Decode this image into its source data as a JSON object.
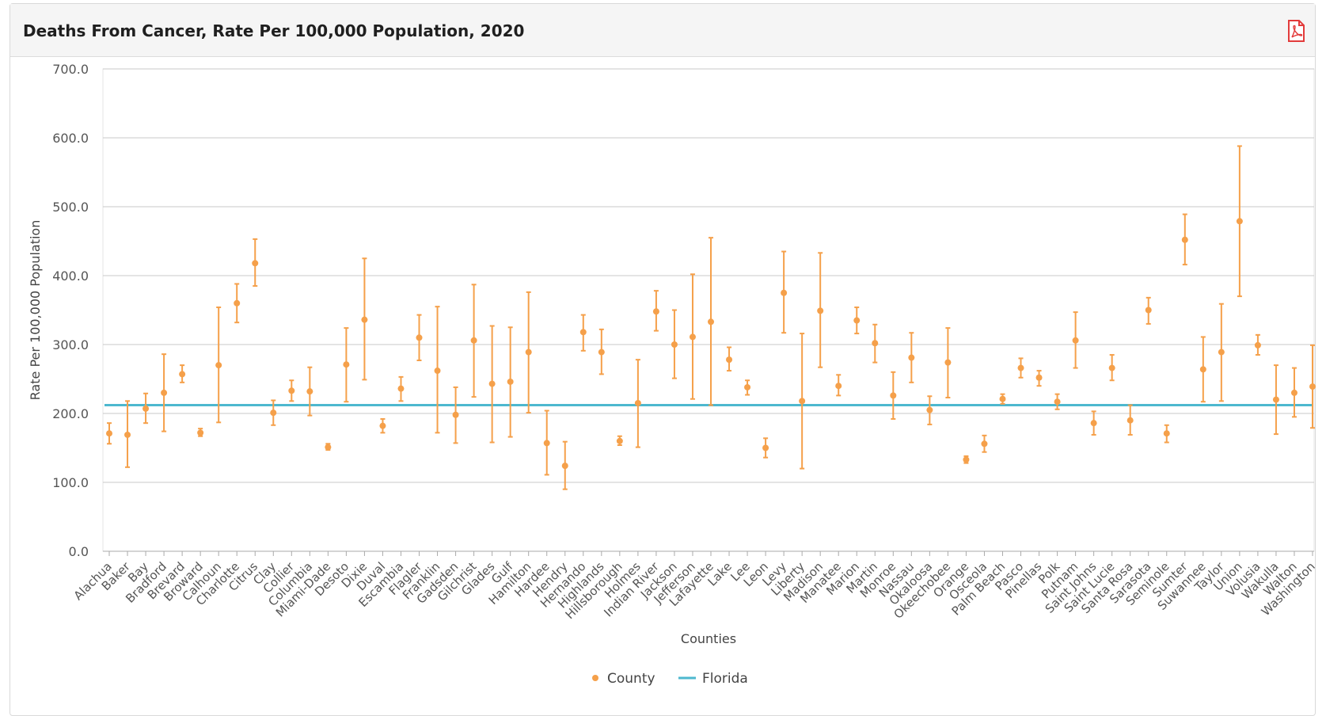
{
  "panel": {
    "title": "Deaths From Cancer, Rate Per 100,000 Population, 2020",
    "export_icon": "pdf-file-icon"
  },
  "colors": {
    "county": "#f5a04a",
    "florida": "#4db8cf",
    "grid": "#c8c8c8",
    "axis_text": "#555555"
  },
  "chart_data": {
    "type": "scatter",
    "title": "",
    "xlabel": "Counties",
    "ylabel": "Rate Per 100,000 Population",
    "ylim": [
      0,
      700
    ],
    "yticks": [
      "0.0",
      "100.0",
      "200.0",
      "300.0",
      "400.0",
      "500.0",
      "600.0",
      "700.0"
    ],
    "grid": true,
    "legend_position": "bottom-center",
    "categories": [
      "Alachua",
      "Baker",
      "Bay",
      "Bradford",
      "Brevard",
      "Broward",
      "Calhoun",
      "Charlotte",
      "Citrus",
      "Clay",
      "Collier",
      "Columbia",
      "Miami-Dade",
      "Desoto",
      "Dixie",
      "Duval",
      "Escambia",
      "Flagler",
      "Franklin",
      "Gadsden",
      "Gilchrist",
      "Glades",
      "Gulf",
      "Hamilton",
      "Hardee",
      "Hendry",
      "Hernando",
      "Highlands",
      "Hillsborough",
      "Holmes",
      "Indian River",
      "Jackson",
      "Jefferson",
      "Lafayette",
      "Lake",
      "Lee",
      "Leon",
      "Levy",
      "Liberty",
      "Madison",
      "Manatee",
      "Marion",
      "Martin",
      "Monroe",
      "Nassau",
      "Okaloosa",
      "Okeechobee",
      "Orange",
      "Osceola",
      "Palm Beach",
      "Pasco",
      "Pinellas",
      "Polk",
      "Putnam",
      "Saint Johns",
      "Saint Lucie",
      "Santa Rosa",
      "Sarasota",
      "Seminole",
      "Sumter",
      "Suwannee",
      "Taylor",
      "Union",
      "Volusia",
      "Wakulla",
      "Walton",
      "Washington"
    ],
    "series": [
      {
        "name": "County",
        "type": "scatter-errorbar",
        "values": [
          171,
          169,
          207,
          230,
          257,
          172,
          270,
          360,
          418,
          201,
          233,
          232,
          151,
          271,
          336,
          182,
          236,
          310,
          262,
          198,
          306,
          243,
          246,
          289,
          157,
          124,
          318,
          289,
          160,
          215,
          348,
          300,
          311,
          333,
          278,
          238,
          150,
          375,
          218,
          349,
          240,
          335,
          302,
          226,
          281,
          205,
          274,
          133,
          156,
          221,
          266,
          252,
          217,
          306,
          186,
          266,
          190,
          350,
          171,
          452,
          264,
          289,
          479,
          299,
          220,
          230,
          239
        ],
        "lower": [
          156,
          122,
          186,
          174,
          245,
          167,
          187,
          332,
          385,
          183,
          218,
          197,
          147,
          217,
          249,
          172,
          218,
          277,
          172,
          157,
          224,
          158,
          166,
          201,
          111,
          90,
          291,
          257,
          154,
          151,
          320,
          251,
          221,
          212,
          262,
          227,
          136,
          317,
          120,
          267,
          226,
          316,
          274,
          192,
          245,
          184,
          223,
          128,
          144,
          214,
          252,
          240,
          206,
          266,
          169,
          248,
          169,
          330,
          158,
          416,
          217,
          218,
          370,
          285,
          170,
          195,
          179
        ],
        "upper": [
          186,
          218,
          229,
          286,
          270,
          178,
          354,
          388,
          453,
          219,
          248,
          267,
          156,
          324,
          425,
          192,
          253,
          343,
          355,
          238,
          387,
          327,
          325,
          376,
          204,
          159,
          343,
          322,
          167,
          278,
          378,
          350,
          402,
          455,
          296,
          248,
          164,
          435,
          316,
          433,
          256,
          354,
          329,
          260,
          317,
          225,
          324,
          138,
          168,
          228,
          280,
          262,
          228,
          347,
          203,
          285,
          212,
          368,
          183,
          489,
          311,
          359,
          588,
          314,
          270,
          266,
          299
        ]
      },
      {
        "name": "Florida",
        "type": "line",
        "value": 212
      }
    ]
  }
}
